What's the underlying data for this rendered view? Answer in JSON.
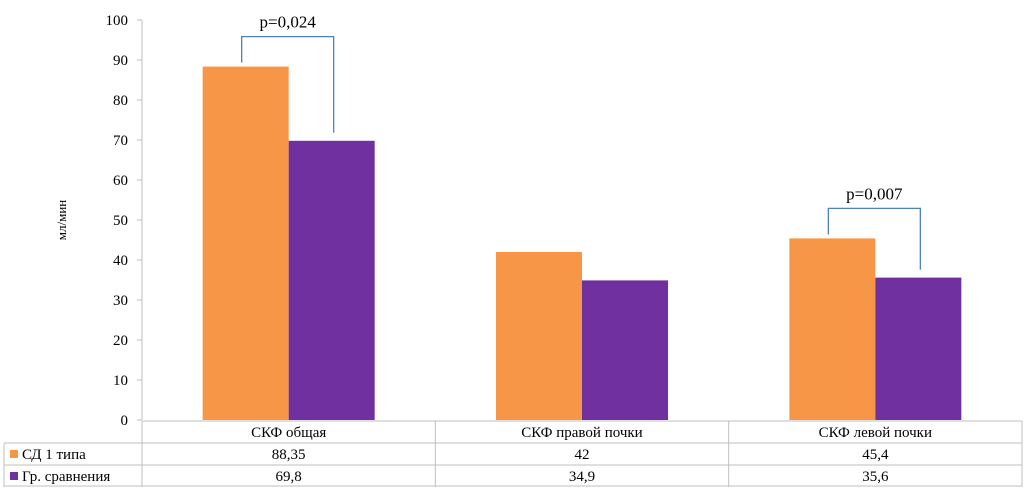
{
  "chart_data": {
    "type": "bar",
    "ylabel": "мл/мин",
    "ylim": [
      0,
      100
    ],
    "yticks": [
      0,
      10,
      20,
      30,
      40,
      50,
      60,
      70,
      80,
      90,
      100
    ],
    "categories": [
      "СКФ общая",
      "СКФ правой почки",
      "СКФ левой почки"
    ],
    "series": [
      {
        "name": "СД 1 типа",
        "color": "#F79646",
        "values": [
          88.35,
          42,
          45.4
        ],
        "labels": [
          "88,35",
          "42",
          "45,4"
        ]
      },
      {
        "name": "Гр. сравнения",
        "color": "#7030A0",
        "values": [
          69.8,
          34.9,
          35.6
        ],
        "labels": [
          "69,8",
          "34,9",
          "35,6"
        ]
      }
    ],
    "annotations": [
      {
        "text": "p=0,024",
        "category_index": 0
      },
      {
        "text": "p=0,007",
        "category_index": 2
      }
    ],
    "legend": "data-table",
    "grid": false
  },
  "colors": {
    "bracket": "#4F81BD",
    "axis": "#bfbfbf"
  }
}
